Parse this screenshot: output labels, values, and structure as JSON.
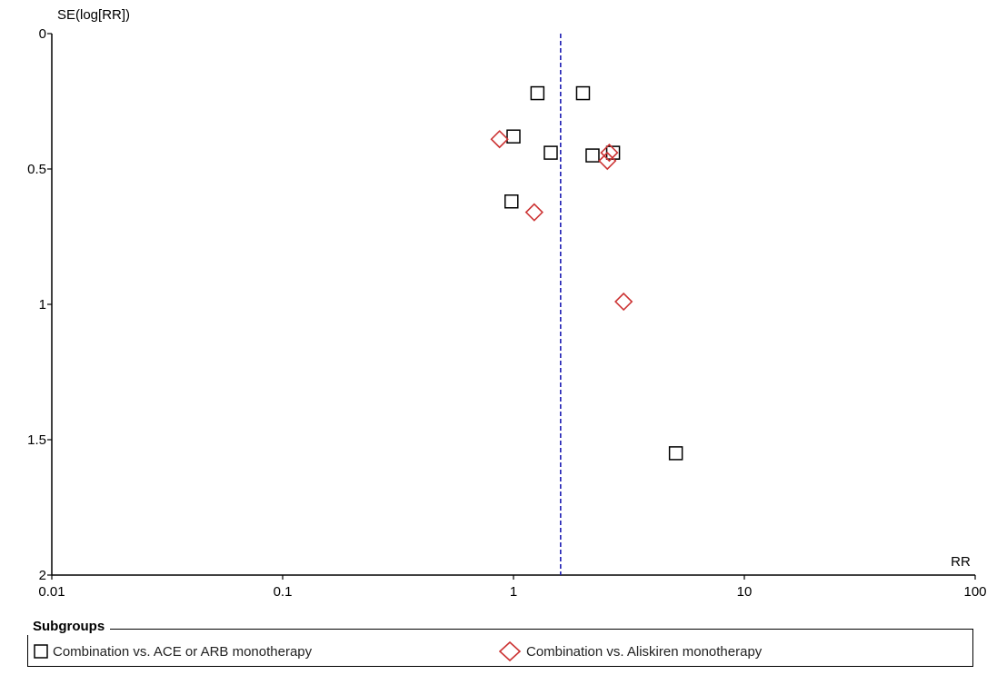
{
  "chart_data": {
    "type": "scatter",
    "title": "",
    "xlabel": "RR",
    "ylabel": "SE(log[RR])",
    "x_scale": "log",
    "xlim": [
      0.01,
      100
    ],
    "ylim": [
      0,
      2
    ],
    "y_inverted": true,
    "x_ticks": [
      0.01,
      0.1,
      1,
      10,
      100
    ],
    "x_tick_labels": [
      "0.01",
      "0.1",
      "1",
      "10",
      "100"
    ],
    "y_ticks": [
      0,
      0.5,
      1,
      1.5,
      2
    ],
    "y_tick_labels": [
      "0",
      "0.5",
      "1",
      "1.5",
      "2"
    ],
    "reference_line": {
      "x": 1.6,
      "style": "dashed",
      "color": "#1f1fb4"
    },
    "legend": {
      "title": "Subgroups",
      "placement": "bottom"
    },
    "series": [
      {
        "name": "Combination vs. ACE or ARB monotherapy",
        "marker": "square",
        "color": "#000000",
        "points": [
          {
            "x": 1.27,
            "y": 0.22
          },
          {
            "x": 2.0,
            "y": 0.22
          },
          {
            "x": 1.0,
            "y": 0.38
          },
          {
            "x": 1.45,
            "y": 0.44
          },
          {
            "x": 2.2,
            "y": 0.45
          },
          {
            "x": 2.7,
            "y": 0.44
          },
          {
            "x": 0.98,
            "y": 0.62
          },
          {
            "x": 5.05,
            "y": 1.55
          }
        ]
      },
      {
        "name": "Combination vs. Aliskiren monotherapy",
        "marker": "diamond",
        "color": "#cc3333",
        "points": [
          {
            "x": 0.87,
            "y": 0.39
          },
          {
            "x": 2.6,
            "y": 0.44
          },
          {
            "x": 2.55,
            "y": 0.47
          },
          {
            "x": 1.23,
            "y": 0.66
          },
          {
            "x": 3.0,
            "y": 0.99
          }
        ]
      }
    ]
  }
}
